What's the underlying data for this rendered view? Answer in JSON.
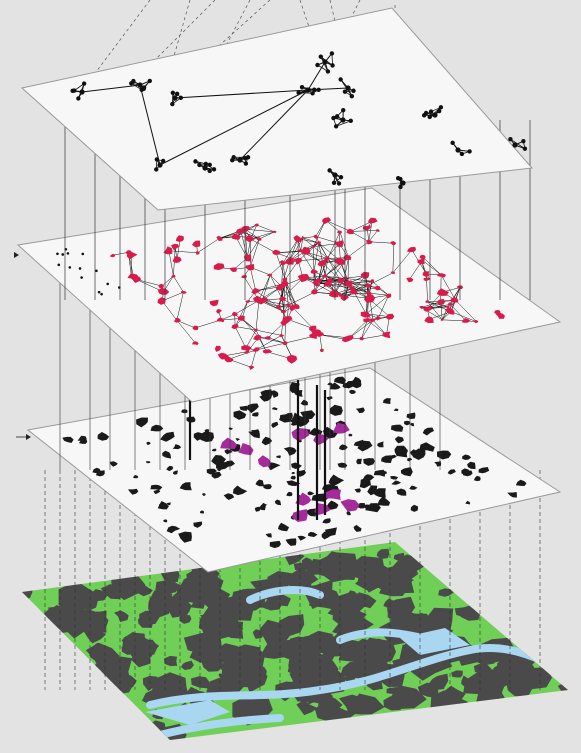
{
  "figure": {
    "layers": [
      {
        "id": "landscape-map",
        "kind": "map"
      },
      {
        "id": "habitat-patches",
        "kind": "patches"
      },
      {
        "id": "patch-network",
        "kind": "network"
      },
      {
        "id": "module-network",
        "kind": "modules"
      }
    ],
    "colors": {
      "background": "#e3e3e3",
      "plane_fill": "#f7f7f7",
      "plane_stroke": "#9a9a9a",
      "network": "#111111",
      "network_nodes_highlight": "#d81b4a",
      "patches": "#1a1a1a",
      "patches_highlight": "#a52a9c",
      "map_green": "#6fcf57",
      "map_dark": "#4a4a4a",
      "map_water": "#a9d6f0",
      "connectors": "#333333"
    },
    "seed": 7
  }
}
